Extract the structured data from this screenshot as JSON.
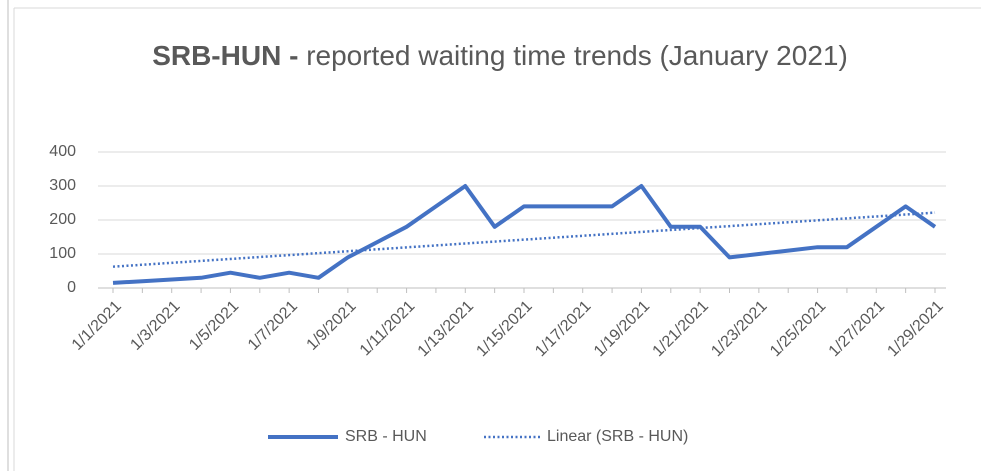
{
  "chart_data": {
    "type": "line",
    "title_bold": "SRB-HUN -",
    "title": "reported waiting time trends (January 2021)",
    "categories": [
      "1/1/2021",
      null,
      "1/3/2021",
      null,
      "1/5/2021",
      null,
      "1/7/2021",
      null,
      "1/9/2021",
      null,
      "1/11/2021",
      null,
      "1/13/2021",
      null,
      "1/15/2021",
      null,
      "1/17/2021",
      null,
      "1/19/2021",
      null,
      "1/21/2021",
      null,
      "1/23/2021",
      null,
      "1/25/2021",
      null,
      "1/27/2021",
      null,
      "1/29/2021"
    ],
    "series": [
      {
        "name": "SRB - HUN",
        "color": "#4472c4",
        "values": [
          15,
          20,
          25,
          30,
          45,
          30,
          45,
          30,
          90,
          135,
          180,
          240,
          300,
          180,
          240,
          240,
          240,
          240,
          300,
          180,
          180,
          90,
          100,
          110,
          120,
          120,
          180,
          240,
          180
        ]
      }
    ],
    "trendline": {
      "name": "Linear (SRB - HUN)",
      "type": "linear"
    },
    "ylim": [
      0,
      400
    ],
    "yticks": [
      0,
      100,
      200,
      300,
      400
    ],
    "grid": true,
    "legend": "bottom"
  }
}
